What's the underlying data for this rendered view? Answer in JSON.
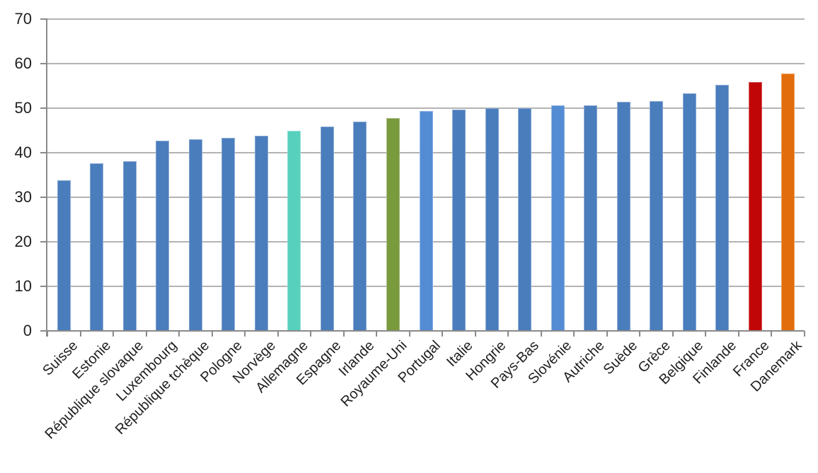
{
  "chart_data": {
    "type": "bar",
    "title": "",
    "xlabel": "",
    "ylabel": "",
    "categories": [
      "Suisse",
      "Estonie",
      "République slovaque",
      "Luxembourg",
      "République tchèque",
      "Pologne",
      "Norvège",
      "Allemagne",
      "Espagne",
      "Irlande",
      "Royaume-Uni",
      "Portugal",
      "Italie",
      "Hongrie",
      "Pays-Bas",
      "Slovénie",
      "Autriche",
      "Suède",
      "Grèce",
      "Belgique",
      "Finlande",
      "France",
      "Danemark"
    ],
    "values": [
      33.8,
      37.6,
      38.1,
      42.7,
      43.0,
      43.4,
      43.8,
      45.0,
      45.8,
      47.0,
      47.8,
      49.3,
      49.7,
      50.0,
      50.0,
      50.6,
      50.7,
      51.4,
      51.6,
      53.4,
      55.2,
      55.8,
      57.7
    ],
    "bar_colors": [
      "#4a7dbc",
      "#4a7dbc",
      "#4a7dbc",
      "#4a7dbc",
      "#4a7dbc",
      "#4a7dbc",
      "#4a7dbc",
      "#57d1bd",
      "#4a7dbc",
      "#4a7dbc",
      "#7a9a3e",
      "#548cd4",
      "#4a7dbc",
      "#4a7dbc",
      "#4a7dbc",
      "#548cd4",
      "#4a7dbc",
      "#4a7dbc",
      "#4a7dbc",
      "#4a7dbc",
      "#4a7dbc",
      "#c00606",
      "#e26d0d"
    ],
    "ylim": [
      0,
      70
    ],
    "yticks": [
      0,
      10,
      20,
      30,
      40,
      50,
      60,
      70
    ],
    "ytick_labels": [
      "0",
      "10",
      "20",
      "30",
      "40",
      "50",
      "60",
      "70"
    ],
    "grid": "horizontal",
    "legend": "none",
    "colors": {
      "default_bar": "#4a7dbc",
      "highlight_teal": "#57d1bd",
      "highlight_olive": "#7a9a3e",
      "highlight_light_blue": "#548cd4",
      "highlight_red": "#c00606",
      "highlight_orange": "#e26d0d",
      "gridline": "#b3b3b3",
      "axis": "#8a8a8a",
      "text": "#1f1f1f",
      "background": "#ffffff"
    }
  }
}
